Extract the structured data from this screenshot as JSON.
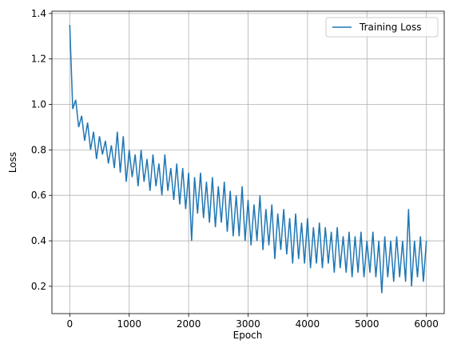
{
  "chart_data": {
    "type": "line",
    "x_label": "Epoch",
    "y_label": "Loss",
    "xlim": [
      -300,
      6300
    ],
    "xticks": [
      0,
      1000,
      2000,
      3000,
      4000,
      5000,
      6000
    ],
    "ylim": [
      0.08,
      1.41
    ],
    "yticks": [
      0.2,
      0.4,
      0.6,
      0.8,
      1.0,
      1.2,
      1.4
    ],
    "grid": true,
    "legend": "upper right",
    "x": [
      0,
      50,
      100,
      150,
      200,
      250,
      300,
      350,
      400,
      450,
      500,
      550,
      600,
      650,
      700,
      750,
      800,
      850,
      900,
      950,
      1000,
      1050,
      1100,
      1150,
      1200,
      1250,
      1300,
      1350,
      1400,
      1450,
      1500,
      1550,
      1600,
      1650,
      1700,
      1750,
      1800,
      1850,
      1900,
      1950,
      2000,
      2050,
      2100,
      2150,
      2200,
      2250,
      2300,
      2350,
      2400,
      2450,
      2500,
      2550,
      2600,
      2650,
      2700,
      2750,
      2800,
      2850,
      2900,
      2950,
      3000,
      3050,
      3100,
      3150,
      3200,
      3250,
      3300,
      3350,
      3400,
      3450,
      3500,
      3550,
      3600,
      3650,
      3700,
      3750,
      3800,
      3850,
      3900,
      3950,
      4000,
      4050,
      4100,
      4150,
      4200,
      4250,
      4300,
      4350,
      4400,
      4450,
      4500,
      4550,
      4600,
      4650,
      4700,
      4750,
      4800,
      4850,
      4900,
      4950,
      5000,
      5050,
      5100,
      5150,
      5200,
      5250,
      5300,
      5350,
      5400,
      5450,
      5500,
      5550,
      5600,
      5650,
      5700,
      5750,
      5800,
      5850,
      5900,
      5950,
      6000
    ],
    "series": [
      {
        "name": "Training Loss",
        "color": "#1f77b4",
        "values": [
          1.35,
          0.98,
          1.02,
          0.9,
          0.95,
          0.84,
          0.92,
          0.8,
          0.88,
          0.76,
          0.86,
          0.78,
          0.84,
          0.74,
          0.82,
          0.72,
          0.88,
          0.7,
          0.86,
          0.66,
          0.8,
          0.68,
          0.78,
          0.64,
          0.8,
          0.66,
          0.76,
          0.62,
          0.78,
          0.64,
          0.74,
          0.6,
          0.78,
          0.62,
          0.72,
          0.58,
          0.74,
          0.56,
          0.72,
          0.54,
          0.7,
          0.4,
          0.68,
          0.52,
          0.7,
          0.5,
          0.66,
          0.48,
          0.68,
          0.46,
          0.64,
          0.48,
          0.66,
          0.44,
          0.62,
          0.42,
          0.6,
          0.42,
          0.64,
          0.4,
          0.58,
          0.38,
          0.56,
          0.4,
          0.6,
          0.36,
          0.54,
          0.38,
          0.56,
          0.32,
          0.52,
          0.36,
          0.54,
          0.34,
          0.5,
          0.3,
          0.52,
          0.32,
          0.48,
          0.3,
          0.5,
          0.28,
          0.46,
          0.3,
          0.48,
          0.28,
          0.46,
          0.3,
          0.44,
          0.26,
          0.46,
          0.28,
          0.42,
          0.26,
          0.44,
          0.24,
          0.42,
          0.26,
          0.44,
          0.24,
          0.4,
          0.26,
          0.44,
          0.24,
          0.4,
          0.17,
          0.42,
          0.24,
          0.4,
          0.22,
          0.42,
          0.24,
          0.4,
          0.22,
          0.54,
          0.2,
          0.4,
          0.24,
          0.42,
          0.22,
          0.4
        ]
      }
    ]
  }
}
